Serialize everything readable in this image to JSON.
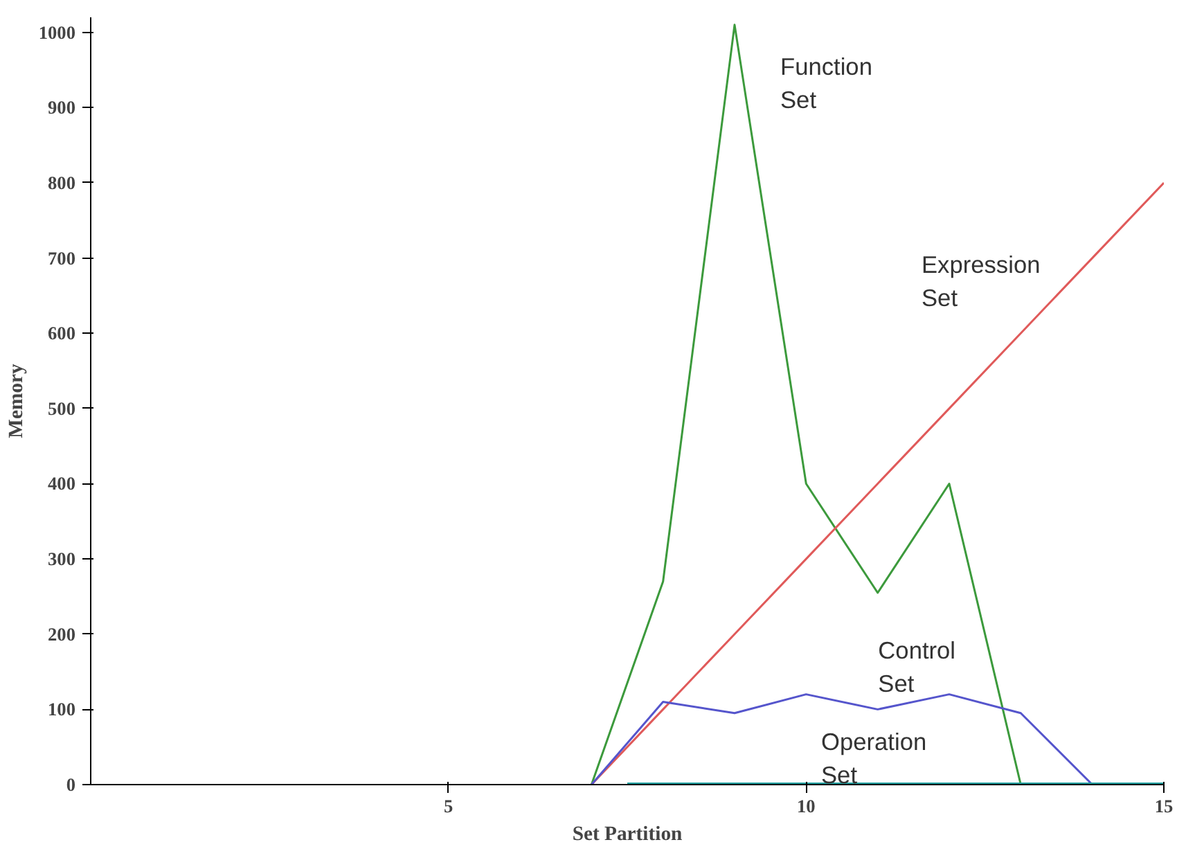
{
  "chart_data": {
    "type": "line",
    "xlabel": "Set Partition",
    "ylabel": "Memory",
    "xlim": [
      0,
      15
    ],
    "ylim": [
      0,
      1020
    ],
    "xticks": [
      5,
      10,
      15
    ],
    "yticks": [
      0,
      100,
      200,
      300,
      400,
      500,
      600,
      700,
      800,
      900,
      1000
    ],
    "grid": false,
    "series": [
      {
        "name": "Function\nSet",
        "color": "#3c9a3c",
        "x": [
          7,
          8,
          9,
          10,
          11,
          12,
          13
        ],
        "values": [
          0,
          270,
          1010,
          400,
          255,
          400,
          0
        ]
      },
      {
        "name": "Expression\nSet",
        "color": "#e05a5a",
        "x": [
          7,
          8,
          9,
          10,
          11,
          12,
          13,
          14,
          15
        ],
        "values": [
          0,
          100,
          200,
          300,
          400,
          500,
          600,
          700,
          800
        ]
      },
      {
        "name": "Control\nSet",
        "color": "#5555cc",
        "x": [
          7,
          8,
          9,
          10,
          11,
          12,
          13,
          14
        ],
        "values": [
          0,
          110,
          95,
          120,
          100,
          120,
          95,
          0
        ]
      },
      {
        "name": "Operation\nSet",
        "color": "#20a0a0",
        "x": [
          7.5,
          15
        ],
        "values": [
          0,
          0
        ]
      }
    ]
  }
}
